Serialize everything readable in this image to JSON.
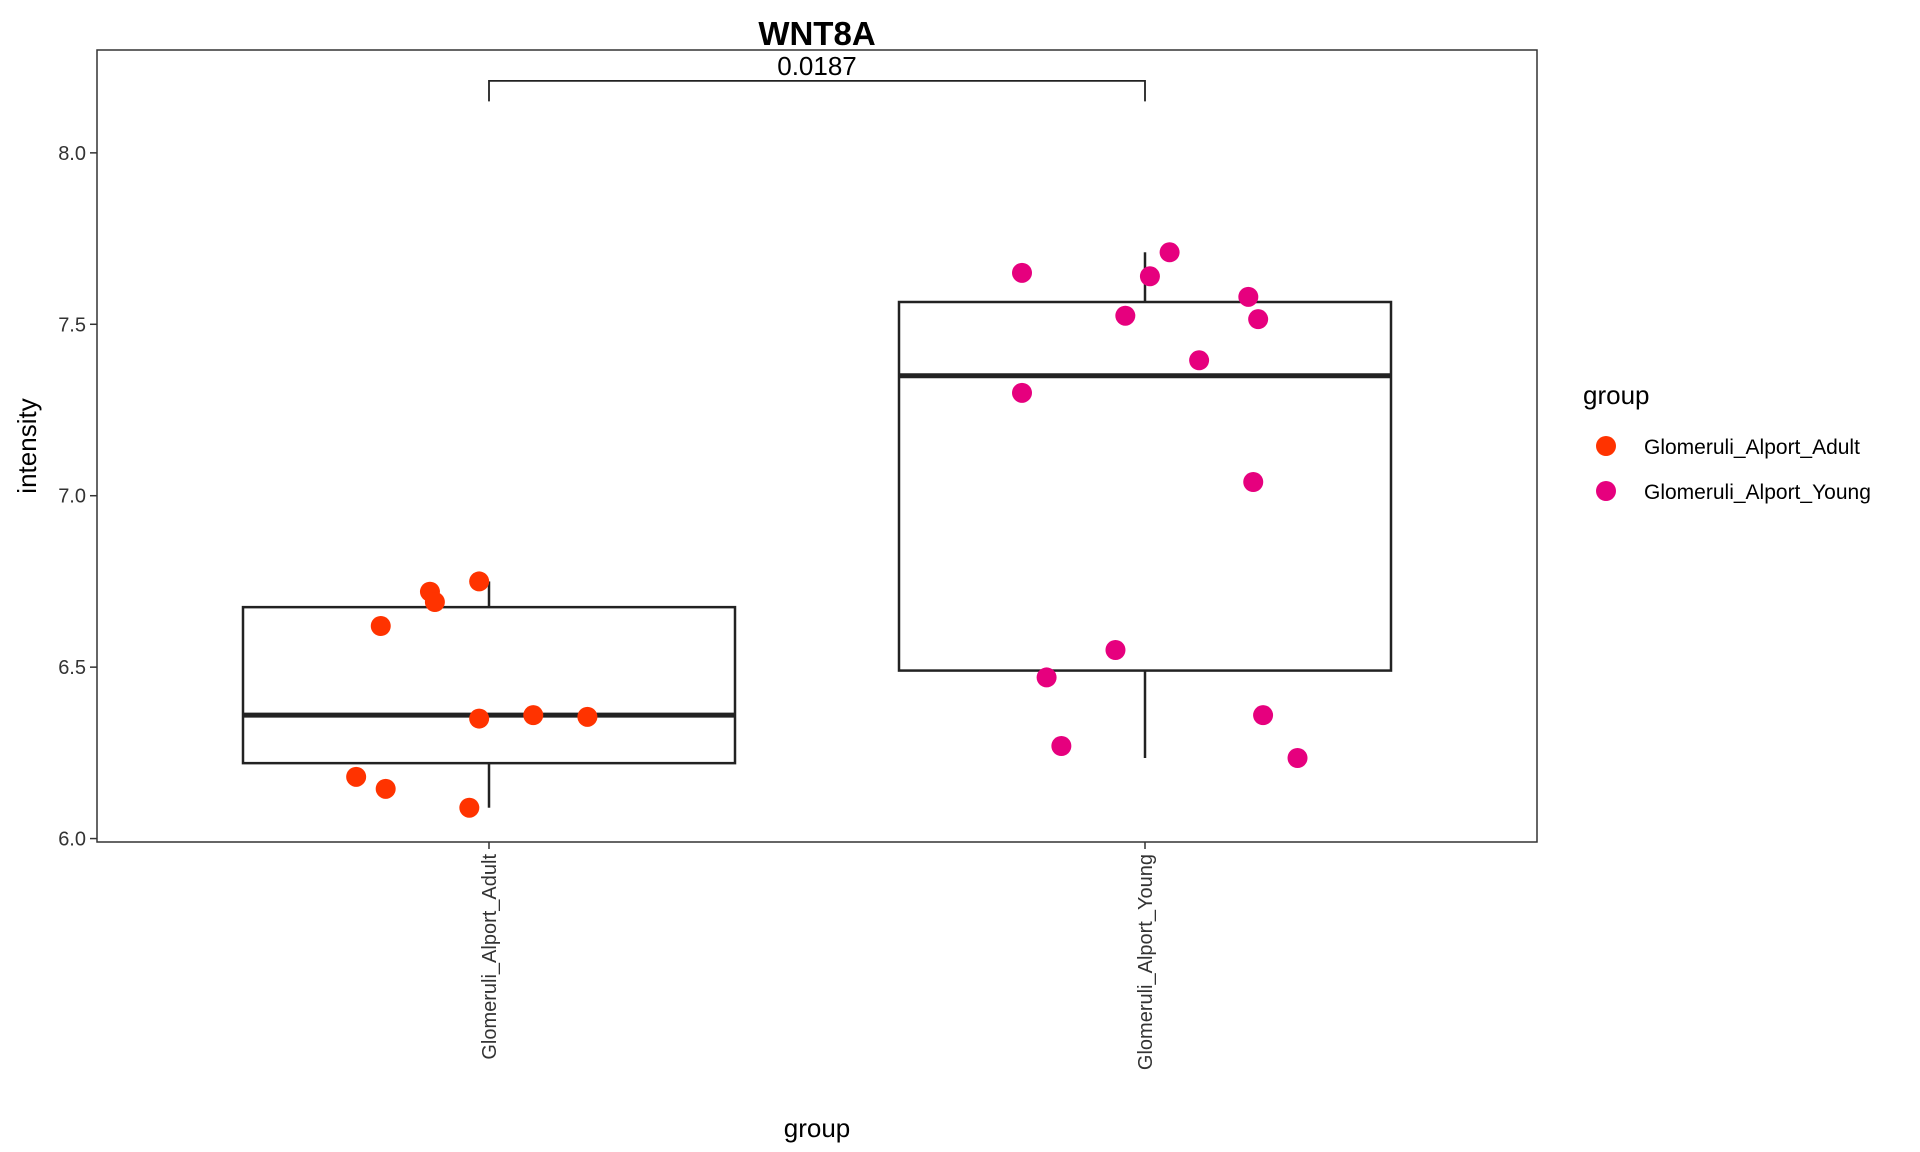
{
  "chart_data": {
    "type": "box",
    "title": "WNT8A",
    "xlabel": "group",
    "ylabel": "intensity",
    "ylim": [
      5.99,
      8.3
    ],
    "yticks": [
      6.0,
      6.5,
      7.0,
      7.5,
      8.0
    ],
    "ytick_labels": [
      "6.0",
      "6.5",
      "7.0",
      "7.5",
      "8.0"
    ],
    "categories": [
      "Glomeruli_Alport_Adult",
      "Glomeruli_Alport_Young"
    ],
    "grid": false,
    "legend": {
      "title": "group",
      "placement": "right",
      "entries": [
        {
          "label": "Glomeruli_Alport_Adult",
          "color": "#ff3300"
        },
        {
          "label": "Glomeruli_Alport_Young",
          "color": "#e6007e"
        }
      ]
    },
    "boxes": [
      {
        "category": "Glomeruli_Alport_Adult",
        "whisker_low": 6.09,
        "q1": 6.22,
        "median": 6.36,
        "q3": 6.675,
        "whisker_high": 6.75
      },
      {
        "category": "Glomeruli_Alport_Young",
        "whisker_low": 6.235,
        "q1": 6.49,
        "median": 7.35,
        "q3": 7.565,
        "whisker_high": 7.71
      }
    ],
    "series": [
      {
        "name": "Glomeruli_Alport_Adult",
        "color": "#ff3300",
        "points": [
          {
            "jitter": -0.27,
            "y": 6.18
          },
          {
            "jitter": -0.21,
            "y": 6.145
          },
          {
            "jitter": -0.22,
            "y": 6.62
          },
          {
            "jitter": -0.12,
            "y": 6.72
          },
          {
            "jitter": -0.11,
            "y": 6.69
          },
          {
            "jitter": -0.02,
            "y": 6.75
          },
          {
            "jitter": -0.02,
            "y": 6.35
          },
          {
            "jitter": 0.09,
            "y": 6.36
          },
          {
            "jitter": 0.2,
            "y": 6.355
          },
          {
            "jitter": -0.04,
            "y": 6.09
          }
        ]
      },
      {
        "name": "Glomeruli_Alport_Young",
        "color": "#e6007e",
        "points": [
          {
            "jitter": -0.25,
            "y": 7.65
          },
          {
            "jitter": -0.25,
            "y": 7.3
          },
          {
            "jitter": -0.2,
            "y": 6.47
          },
          {
            "jitter": -0.17,
            "y": 6.27
          },
          {
            "jitter": -0.06,
            "y": 6.55
          },
          {
            "jitter": -0.04,
            "y": 7.525
          },
          {
            "jitter": 0.01,
            "y": 7.64
          },
          {
            "jitter": 0.05,
            "y": 7.71
          },
          {
            "jitter": 0.11,
            "y": 7.395
          },
          {
            "jitter": 0.21,
            "y": 7.58
          },
          {
            "jitter": 0.22,
            "y": 7.04
          },
          {
            "jitter": 0.23,
            "y": 7.515
          },
          {
            "jitter": 0.24,
            "y": 6.36
          },
          {
            "jitter": 0.31,
            "y": 6.235
          }
        ]
      }
    ],
    "annotation": {
      "text": "0.0187",
      "from_category": "Glomeruli_Alport_Adult",
      "to_category": "Glomeruli_Alport_Young",
      "y": 8.21,
      "tick_bottom": 8.15
    }
  }
}
